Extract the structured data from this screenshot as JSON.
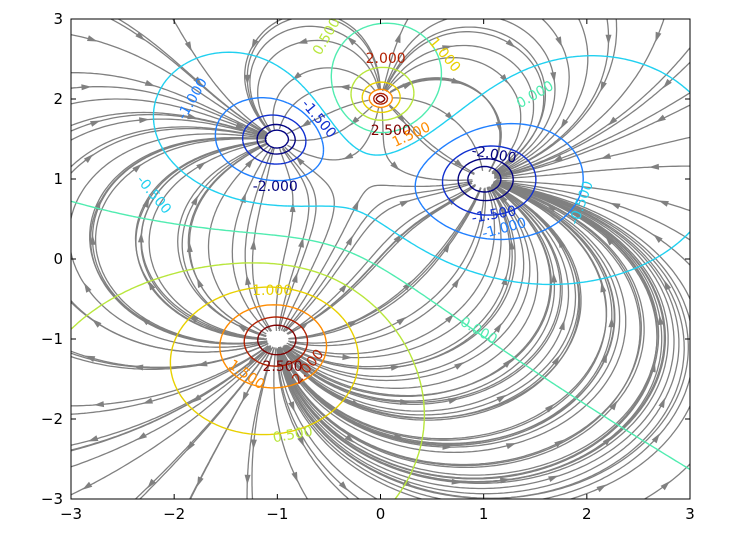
{
  "chart_data": {
    "type": "contour",
    "description_kind": "contour plot with streamlines of point charges",
    "xlim": [
      -3,
      3
    ],
    "ylim": [
      -3,
      3
    ],
    "x_ticks": [
      -3,
      -2,
      -1,
      0,
      1,
      2,
      3
    ],
    "y_ticks": [
      -3,
      -2,
      -1,
      0,
      1,
      2,
      3
    ],
    "x_tick_labels": [
      "−3",
      "−2",
      "−1",
      "0",
      "1",
      "2",
      "3"
    ],
    "y_tick_labels": [
      "−3",
      "−2",
      "−1",
      "0",
      "1",
      "2",
      "3"
    ],
    "charges": [
      {
        "x": 0,
        "y": 2,
        "sign": "+"
      },
      {
        "x": -1,
        "y": -1,
        "sign": "+"
      },
      {
        "x": -1,
        "y": 1.5,
        "sign": "-"
      },
      {
        "x": 1,
        "y": 1,
        "sign": "-"
      }
    ],
    "contour_levels": [
      -2.5,
      -2.0,
      -1.5,
      -1.0,
      -0.5,
      0.0,
      0.5,
      1.0,
      1.5,
      2.0,
      2.5
    ],
    "contour_labels": [
      {
        "text": "2.000",
        "x": 0.05,
        "y": 2.5,
        "color": "#b22000",
        "rot": 0
      },
      {
        "text": "1.000",
        "x": 0.62,
        "y": 2.55,
        "color": "#e8d000",
        "rot": 50
      },
      {
        "text": "0.500",
        "x": -0.52,
        "y": 2.78,
        "color": "#b8e63c",
        "rot": -60
      },
      {
        "text": "0.000",
        "x": 1.5,
        "y": 2.05,
        "color": "#50ecb0",
        "rot": -30
      },
      {
        "text": "2.500",
        "x": 0.1,
        "y": 1.6,
        "color": "#800000",
        "rot": 0
      },
      {
        "text": "1.500",
        "x": 0.3,
        "y": 1.55,
        "color": "#ff8c00",
        "rot": -25
      },
      {
        "text": "-1.000",
        "x": -1.82,
        "y": 2.0,
        "color": "#1f7fff",
        "rot": -60
      },
      {
        "text": "-1.500",
        "x": -0.6,
        "y": 1.75,
        "color": "#1030d0",
        "rot": 50
      },
      {
        "text": "-2.000",
        "x": -1.02,
        "y": 0.9,
        "color": "#000080",
        "rot": 0
      },
      {
        "text": "-0.500",
        "x": -2.2,
        "y": 0.8,
        "color": "#20d0f0",
        "rot": 50
      },
      {
        "text": "-2.000",
        "x": 1.1,
        "y": 1.3,
        "color": "#000080",
        "rot": 10
      },
      {
        "text": "-1.500",
        "x": 1.1,
        "y": 0.55,
        "color": "#1030d0",
        "rot": -10
      },
      {
        "text": "-1.000",
        "x": 1.2,
        "y": 0.38,
        "color": "#1f7fff",
        "rot": -15
      },
      {
        "text": "-0.500",
        "x": 1.95,
        "y": 0.7,
        "color": "#20d0f0",
        "rot": -70
      },
      {
        "text": "1.000",
        "x": -1.05,
        "y": -0.4,
        "color": "#e8d000",
        "rot": 0
      },
      {
        "text": "0.000",
        "x": 0.95,
        "y": -0.9,
        "color": "#50ecb0",
        "rot": 30
      },
      {
        "text": "2.500",
        "x": -0.95,
        "y": -1.35,
        "color": "#800000",
        "rot": 0
      },
      {
        "text": "2.000",
        "x": -0.7,
        "y": -1.35,
        "color": "#b22000",
        "rot": -50
      },
      {
        "text": "1.500",
        "x": -1.3,
        "y": -1.45,
        "color": "#ff8c00",
        "rot": 35
      },
      {
        "text": "0.500",
        "x": -0.85,
        "y": -2.2,
        "color": "#b8e63c",
        "rot": -10
      }
    ]
  }
}
